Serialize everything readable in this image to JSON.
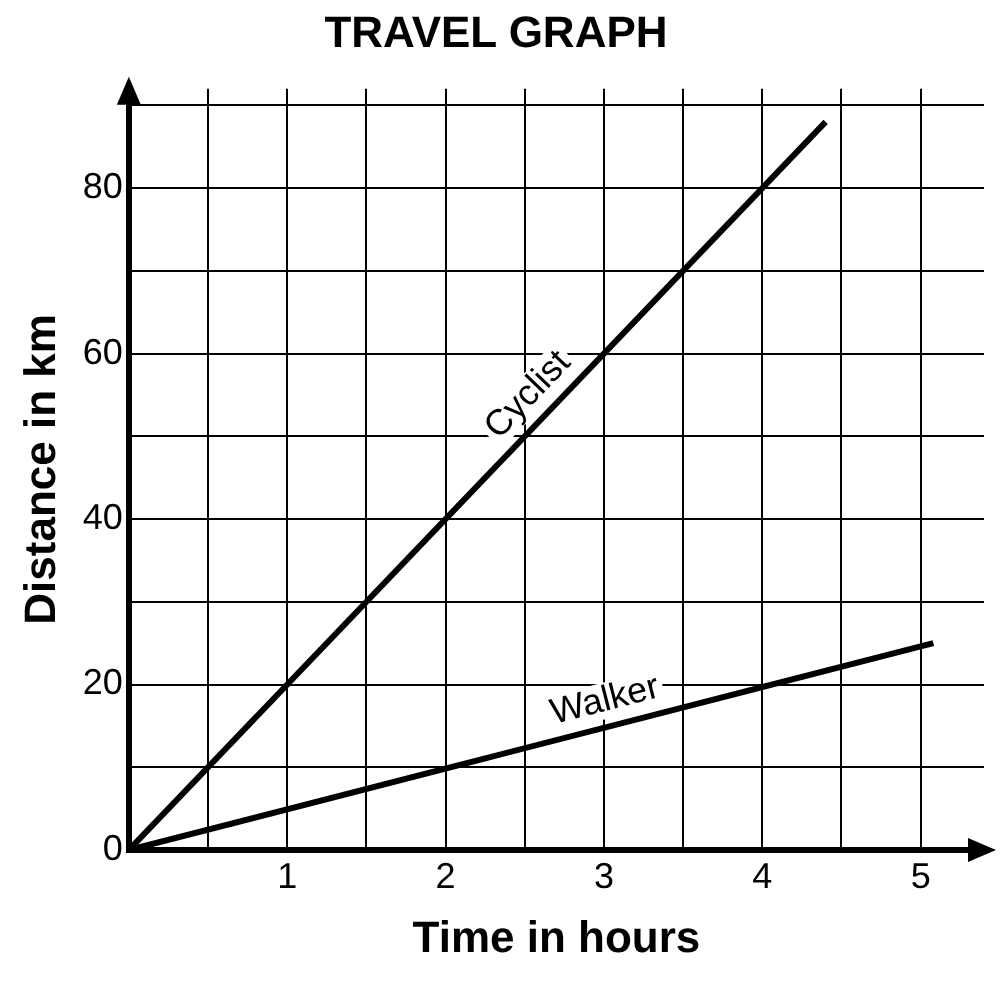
{
  "chart_data": {
    "type": "line",
    "title": "TRAVEL GRAPH",
    "xlabel": "Time in hours",
    "ylabel": "Distance in km",
    "series": [
      {
        "name": "Cyclist",
        "color": "#000000",
        "x": [
          0,
          4.4
        ],
        "values": [
          0,
          88
        ]
      },
      {
        "name": "Walker",
        "color": "#000000",
        "x": [
          0,
          5.08
        ],
        "values": [
          0,
          25
        ]
      }
    ],
    "xlim": [
      0,
      5.4
    ],
    "ylim": [
      0,
      92
    ],
    "xticks": [
      {
        "value": 0,
        "label": null
      },
      {
        "value": 0.5,
        "label": null
      },
      1,
      {
        "value": 1.5,
        "label": null
      },
      2,
      {
        "value": 2.5,
        "label": null
      },
      3,
      {
        "value": 3.5,
        "label": null
      },
      4,
      {
        "value": 4.5,
        "label": null
      },
      5
    ],
    "yticks": [
      0,
      {
        "value": 10,
        "label": null
      },
      20,
      {
        "value": 30,
        "label": null
      },
      40,
      {
        "value": 50,
        "label": null
      },
      60,
      {
        "value": 70,
        "label": null
      },
      80,
      {
        "value": 90,
        "label": null
      }
    ],
    "grid": true,
    "legend": false,
    "marker": "none",
    "line_style": "solid"
  }
}
